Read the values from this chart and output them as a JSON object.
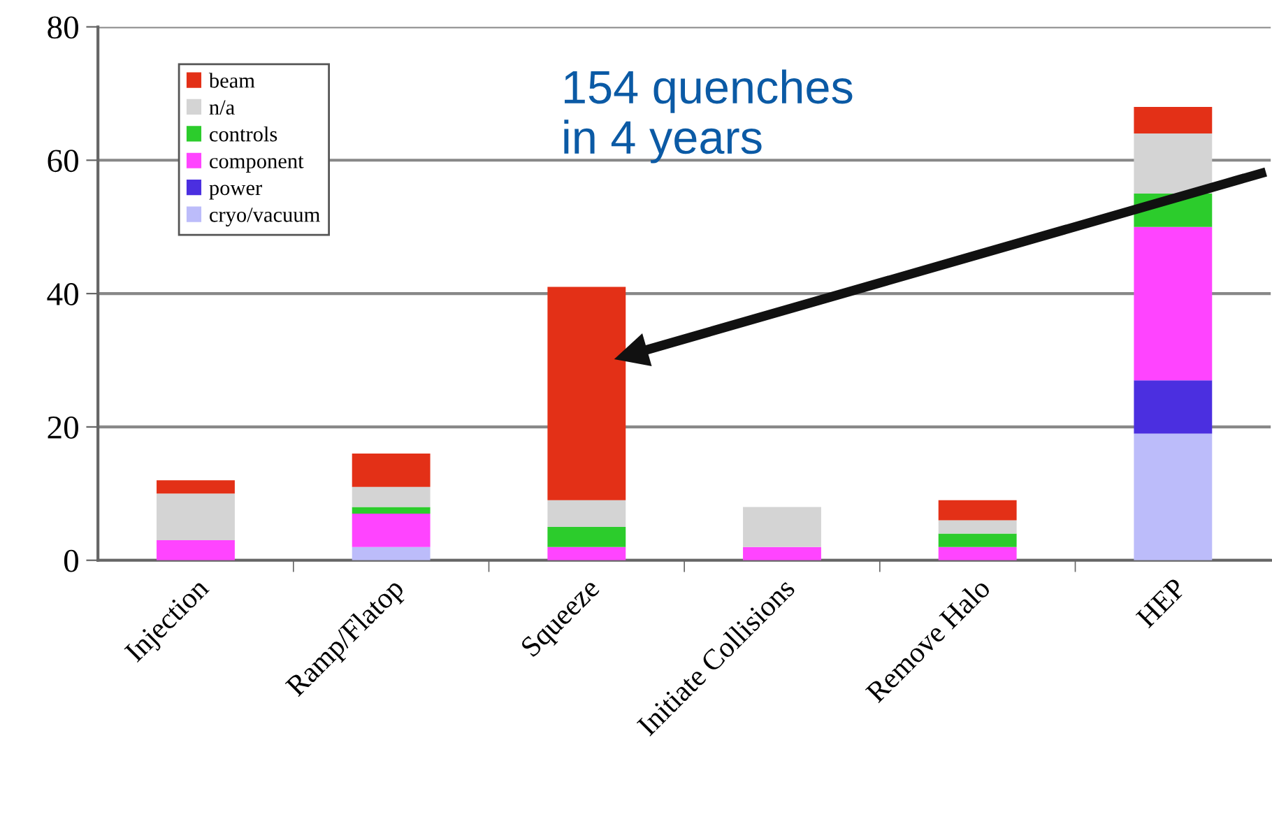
{
  "chart_data": {
    "type": "bar",
    "stacked": true,
    "categories": [
      "Injection",
      "Ramp/Flatop",
      "Squeeze",
      "Initiate Collisions",
      "Remove Halo",
      "HEP"
    ],
    "series": [
      {
        "name": "cryo/vacuum",
        "color": "#bcbcfa",
        "values": [
          0,
          2,
          0,
          0,
          0,
          19
        ]
      },
      {
        "name": "power",
        "color": "#4b2fe0",
        "values": [
          0,
          0,
          0,
          0,
          0,
          8
        ]
      },
      {
        "name": "component",
        "color": "#ff44ff",
        "values": [
          3,
          5,
          2,
          2,
          2,
          23
        ]
      },
      {
        "name": "controls",
        "color": "#2ccc2c",
        "values": [
          0,
          1,
          3,
          0,
          2,
          5
        ]
      },
      {
        "name": "n/a",
        "color": "#d4d4d4",
        "values": [
          7,
          3,
          4,
          6,
          2,
          9
        ]
      },
      {
        "name": "beam",
        "color": "#e33017",
        "values": [
          2,
          5,
          32,
          0,
          3,
          4
        ]
      }
    ],
    "ylim": [
      0,
      80
    ],
    "yticks": [
      0,
      20,
      40,
      60,
      80
    ],
    "grid": "y",
    "legend": "top left",
    "annotations": [
      "154 quenches\nin 4 years"
    ]
  }
}
